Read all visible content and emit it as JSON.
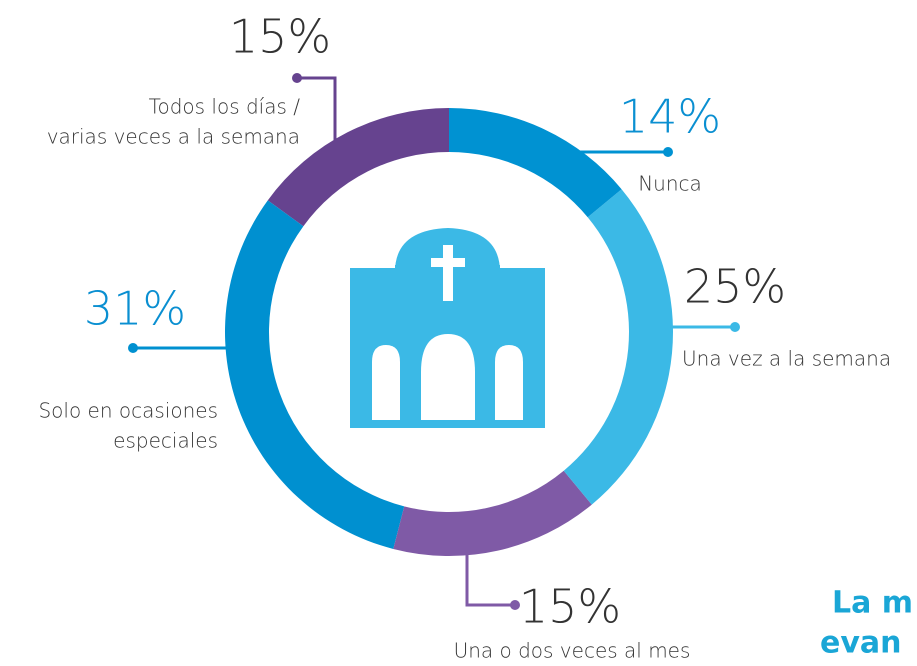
{
  "chart_data": {
    "type": "donut",
    "categories": [
      "Nunca",
      "Una vez a la semana",
      "Una o dos veces al mes",
      "Solo en ocasiones especiales",
      "Todos los días / varias veces a la semana"
    ],
    "category_lines": [
      [
        "Nunca"
      ],
      [
        "Una vez a la semana"
      ],
      [
        "Una o dos veces al mes"
      ],
      [
        "Solo en ocasiones",
        "especiales"
      ],
      [
        "Todos los días /",
        "varias veces a la semana"
      ]
    ],
    "values": [
      14,
      25,
      15,
      31,
      15
    ],
    "value_labels": [
      "14%",
      "25%",
      "15%",
      "31%",
      "15%"
    ],
    "colors": [
      "#0092d2",
      "#3bb9e6",
      "#7f5aa6",
      "#0090d0",
      "#66438f"
    ],
    "footer_lines": [
      "La m",
      "evan"
    ]
  }
}
